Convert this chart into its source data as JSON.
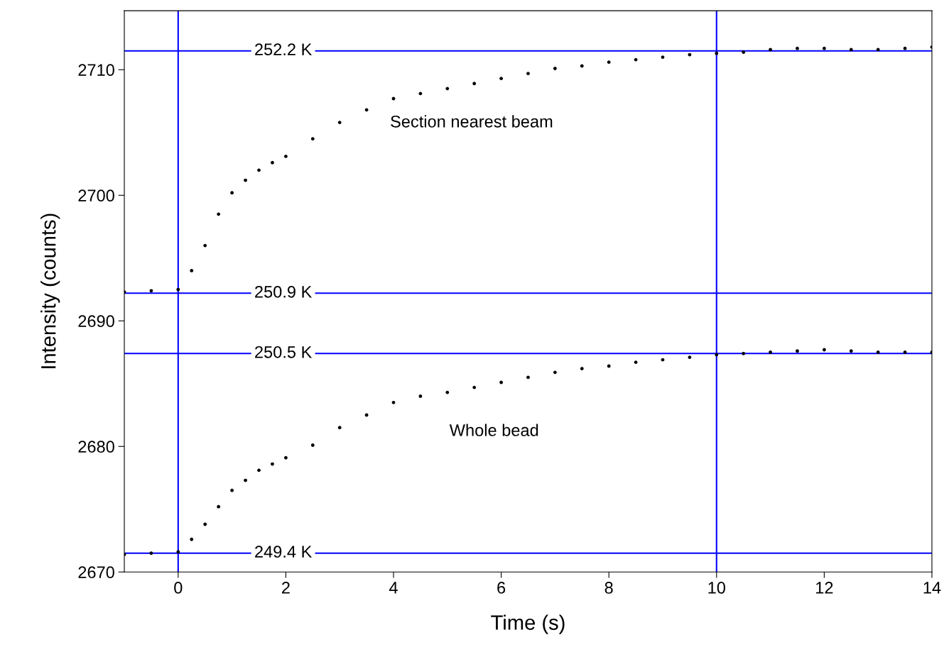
{
  "chart_data": {
    "type": "scatter",
    "xlabel": "Time (s)",
    "ylabel": "Intensity (counts)",
    "xlim": [
      -1,
      14
    ],
    "ylim": [
      2670,
      2714.7
    ],
    "xticks": [
      0,
      2,
      4,
      6,
      8,
      10,
      12,
      14
    ],
    "yticks": [
      2670,
      2680,
      2690,
      2700,
      2710
    ],
    "grid": false,
    "legend": false,
    "marker": "circle",
    "x": [
      -1,
      -0.5,
      0,
      0.25,
      0.5,
      0.75,
      1,
      1.25,
      1.5,
      1.75,
      2,
      2.5,
      3,
      3.5,
      4,
      4.5,
      5,
      5.5,
      6,
      6.5,
      7,
      7.5,
      8,
      8.5,
      9,
      9.5,
      10,
      10.5,
      11,
      11.5,
      12,
      12.5,
      13,
      13.5,
      14
    ],
    "series": [
      {
        "color": "#000000",
        "values": [
          2692.3,
          2692.4,
          2692.5,
          2694.0,
          2696.0,
          2698.5,
          2700.2,
          2701.2,
          2702.0,
          2702.6,
          2703.1,
          2704.5,
          2705.8,
          2706.8,
          2707.7,
          2708.1,
          2708.5,
          2708.9,
          2709.3,
          2709.7,
          2710.1,
          2710.3,
          2710.6,
          2710.8,
          2711.0,
          2711.2,
          2711.3,
          2711.4,
          2711.6,
          2711.7,
          2711.7,
          2711.6,
          2711.6,
          2711.7,
          2711.8
        ]
      },
      {
        "color": "#000000",
        "values": [
          2671.4,
          2671.5,
          2671.6,
          2672.6,
          2673.8,
          2675.2,
          2676.5,
          2677.3,
          2678.1,
          2678.6,
          2679.1,
          2680.1,
          2681.5,
          2682.5,
          2683.5,
          2684.0,
          2684.3,
          2684.7,
          2685.1,
          2685.5,
          2685.9,
          2686.2,
          2686.4,
          2686.7,
          2686.9,
          2687.1,
          2687.3,
          2687.4,
          2687.5,
          2687.6,
          2687.7,
          2687.6,
          2687.5,
          2687.5,
          2687.5
        ]
      }
    ],
    "ref_lines": [
      {
        "axis": "y",
        "value": 2711.5,
        "label": "252.2 K",
        "color": "#0000ff"
      },
      {
        "axis": "y",
        "value": 2692.2,
        "label": "250.9 K",
        "color": "#0000ff"
      },
      {
        "axis": "y",
        "value": 2687.4,
        "label": "250.5 K",
        "color": "#0000ff"
      },
      {
        "axis": "y",
        "value": 2671.5,
        "label": "249.4 K",
        "color": "#0000ff"
      },
      {
        "axis": "x",
        "value": 0,
        "color": "#0000ff"
      },
      {
        "axis": "x",
        "value": 10,
        "color": "#0000ff"
      }
    ],
    "annotations": [
      "Section nearest beam",
      "Whole bead"
    ]
  }
}
